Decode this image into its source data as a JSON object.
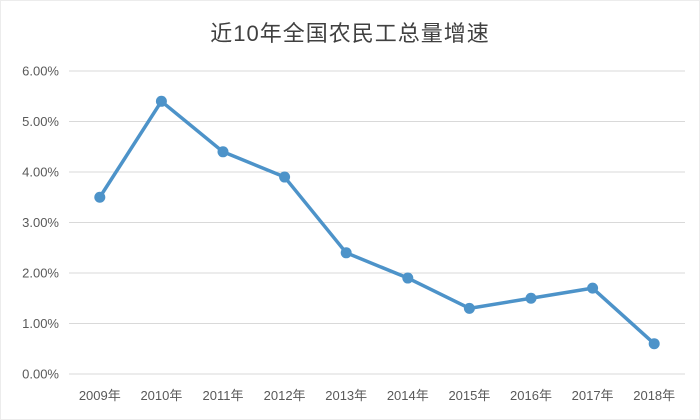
{
  "chart_data": {
    "type": "line",
    "title": "近10年全国农民工总量增速",
    "categories": [
      "2009年",
      "2010年",
      "2011年",
      "2012年",
      "2013年",
      "2014年",
      "2015年",
      "2016年",
      "2017年",
      "2018年"
    ],
    "values": [
      3.5,
      5.4,
      4.4,
      3.9,
      2.4,
      1.9,
      1.3,
      1.5,
      1.7,
      0.6
    ],
    "xlabel": "",
    "ylabel": "",
    "ylim": [
      0,
      6
    ],
    "ytick_step": 1,
    "ytick_suffix": "%",
    "ytick_decimals": 2,
    "grid": true,
    "legend_position": "none",
    "line_color": "#4d93c9",
    "grid_color": "#d9d9d9",
    "title_color": "#404040",
    "tick_color": "#595959",
    "background_color": "#ffffff"
  }
}
